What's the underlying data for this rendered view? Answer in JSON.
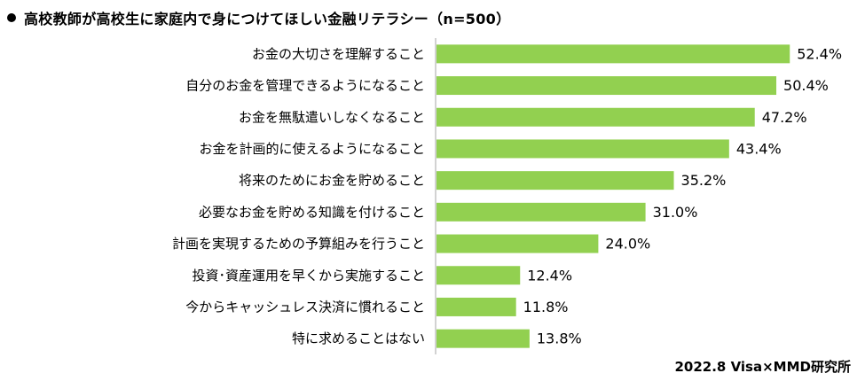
{
  "title": "高校教師が高校生に家庭内で身につけてほしい金融リテラシー（n=500）",
  "source": "2022.8 Visa×MMD研究所",
  "colors": {
    "bar": "#92D050",
    "axis": "#A6A6A6",
    "text": "#000000"
  },
  "chart_data": {
    "type": "bar",
    "orientation": "horizontal",
    "title": "高校教師が高校生に家庭内で身につけてほしい金融リテラシー（n=500）",
    "categories": [
      "お金の大切さを理解すること",
      "自分のお金を管理できるようになること",
      "お金を無駄遣いしなくなること",
      "お金を計画的に使えるようになること",
      "将来のためにお金を貯めること",
      "必要なお金を貯める知識を付けること",
      "計画を実現するための予算組みを行うこと",
      "投資･資産運用を早くから実施すること",
      "今からキャッシュレス決済に慣れること",
      "特に求めることはない"
    ],
    "values": [
      52.4,
      50.4,
      47.2,
      43.4,
      35.2,
      31.0,
      24.0,
      12.4,
      11.8,
      13.8
    ],
    "value_labels": [
      "52.4%",
      "50.4%",
      "47.2%",
      "43.4%",
      "35.2%",
      "31.0%",
      "24.0%",
      "12.4%",
      "11.8%",
      "13.8%"
    ],
    "unit": "%",
    "xlim": [
      0,
      60
    ],
    "grid": false,
    "legend": "none"
  }
}
